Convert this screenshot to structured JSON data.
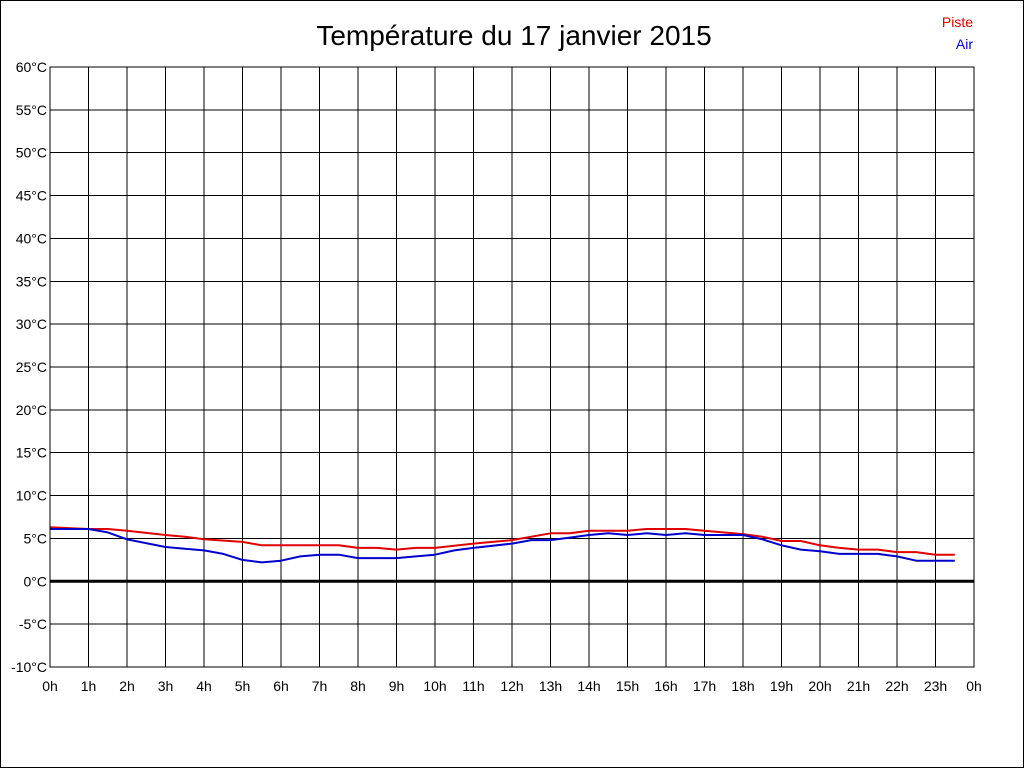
{
  "chart_data": {
    "type": "line",
    "title": "Température du 17 janvier 2015",
    "xlabel": "",
    "ylabel": "",
    "ylim": [
      -10,
      60
    ],
    "y_ticks": [
      "60°C",
      "55°C",
      "50°C",
      "45°C",
      "40°C",
      "35°C",
      "30°C",
      "25°C",
      "20°C",
      "15°C",
      "10°C",
      "5°C",
      "0°C",
      "-5°C",
      "-10°C"
    ],
    "x_ticks": [
      "0h",
      "1h",
      "2h",
      "3h",
      "4h",
      "5h",
      "6h",
      "7h",
      "8h",
      "9h",
      "10h",
      "11h",
      "12h",
      "13h",
      "14h",
      "15h",
      "16h",
      "17h",
      "18h",
      "19h",
      "20h",
      "21h",
      "22h",
      "23h",
      "0h"
    ],
    "x_unit": "hour",
    "xlim": [
      0,
      24
    ],
    "grid": true,
    "legend_position": "top-right",
    "series": [
      {
        "name": "Piste",
        "color": "#e00000",
        "x": [
          0,
          1,
          1.5,
          2,
          3,
          3.5,
          4,
          5,
          5.5,
          6,
          7,
          7.5,
          8,
          8.5,
          9,
          9.5,
          10,
          11,
          12,
          12.5,
          13,
          13.5,
          14,
          15,
          15.5,
          16,
          16.5,
          17,
          18,
          18.5,
          19,
          19.5,
          20,
          20.5,
          21,
          21.5,
          22,
          22.5,
          23,
          23.5
        ],
        "values": [
          6.3,
          6.1,
          6.1,
          5.9,
          5.4,
          5.2,
          4.9,
          4.6,
          4.2,
          4.2,
          4.2,
          4.2,
          3.9,
          3.9,
          3.7,
          3.9,
          3.9,
          4.4,
          4.8,
          5.2,
          5.6,
          5.6,
          5.9,
          5.9,
          6.1,
          6.1,
          6.1,
          5.9,
          5.5,
          5.2,
          4.7,
          4.7,
          4.2,
          3.9,
          3.7,
          3.7,
          3.4,
          3.4,
          3.1,
          3.1
        ]
      },
      {
        "name": "Air",
        "color": "#0000cc",
        "x": [
          0,
          1,
          1.5,
          2,
          3,
          3.5,
          4,
          4.5,
          5,
          5.5,
          6,
          6.5,
          7,
          7.5,
          8,
          8.5,
          9,
          9.5,
          10,
          10.5,
          11,
          12,
          12.5,
          13,
          13.5,
          14,
          14.5,
          15,
          15.5,
          16,
          16.5,
          17,
          18,
          18.5,
          19,
          19.5,
          20,
          20.5,
          21,
          21.5,
          22,
          22.5,
          23,
          23.5
        ],
        "values": [
          6.1,
          6.1,
          5.7,
          4.9,
          4.0,
          3.8,
          3.6,
          3.2,
          2.5,
          2.2,
          2.4,
          2.9,
          3.1,
          3.1,
          2.7,
          2.7,
          2.7,
          2.9,
          3.1,
          3.6,
          3.9,
          4.4,
          4.8,
          4.8,
          5.1,
          5.4,
          5.6,
          5.4,
          5.6,
          5.4,
          5.6,
          5.4,
          5.4,
          4.9,
          4.2,
          3.7,
          3.5,
          3.2,
          3.2,
          3.2,
          2.9,
          2.4,
          2.4,
          2.4
        ]
      }
    ]
  }
}
